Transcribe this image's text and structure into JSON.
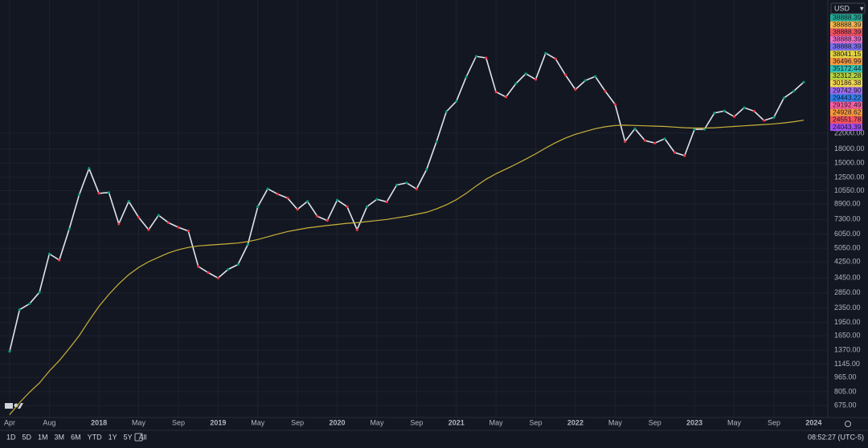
{
  "chart_data": {
    "type": "line",
    "log_scale": true,
    "grid": true,
    "currency": "USD",
    "categories": [
      "Apr",
      null,
      null,
      null,
      "Aug",
      null,
      null,
      null,
      null,
      "2018",
      null,
      null,
      null,
      "May",
      null,
      null,
      null,
      "Sep",
      null,
      null,
      null,
      "2019",
      null,
      null,
      null,
      "May",
      null,
      null,
      null,
      "Sep",
      null,
      null,
      null,
      "2020",
      null,
      null,
      null,
      "May",
      null,
      null,
      null,
      "Sep",
      null,
      null,
      null,
      "2021",
      null,
      null,
      null,
      "May",
      null,
      null,
      null,
      "Sep",
      null,
      null,
      null,
      "2022",
      null,
      null,
      null,
      "May",
      null,
      null,
      null,
      "Sep",
      null,
      null,
      null,
      "2023",
      null,
      null,
      null,
      "May",
      null,
      null,
      null,
      "Sep",
      null,
      null,
      null,
      "2024"
    ],
    "series": [
      {
        "color": "#e0e3eb",
        "values": [
          1350,
          2300,
          2480,
          2870,
          4700,
          4340,
          6450,
          10000,
          14000,
          10200,
          10300,
          6900,
          9200,
          7500,
          6400,
          7700,
          7000,
          6600,
          6300,
          4000,
          3700,
          3450,
          3850,
          4100,
          5300,
          8600,
          10800,
          10100,
          9600,
          8300,
          9200,
          7600,
          7200,
          9350,
          8600,
          6400,
          8600,
          9450,
          9140,
          11350,
          11650,
          10780,
          13800,
          19700,
          29000,
          33100,
          45200,
          58800,
          57700,
          37300,
          35000,
          41500,
          47100,
          43800,
          61300,
          57000,
          46300,
          38500,
          43200,
          45500,
          37700,
          31800,
          19800,
          23300,
          20050,
          19400,
          20500,
          17200,
          16500,
          23100,
          23150,
          28500,
          29250,
          27200,
          30500,
          29200,
          25900,
          26970,
          34500,
          37700,
          42300,
          null
        ]
      },
      {
        "color": "#c9b23a",
        "values": [
          600,
          700,
          800,
          900,
          1050,
          1200,
          1400,
          1650,
          2000,
          2400,
          2800,
          3200,
          3600,
          3950,
          4250,
          4500,
          4750,
          4950,
          5100,
          5200,
          5250,
          5300,
          5350,
          5400,
          5500,
          5650,
          5850,
          6050,
          6250,
          6400,
          6550,
          6650,
          6750,
          6850,
          6950,
          7000,
          7100,
          7200,
          7300,
          7450,
          7600,
          7800,
          8000,
          8350,
          8800,
          9400,
          10200,
          11200,
          12200,
          13100,
          13900,
          14800,
          15800,
          16900,
          18200,
          19500,
          20700,
          21700,
          22500,
          23300,
          23900,
          24300,
          24400,
          24300,
          24200,
          24100,
          24000,
          23800,
          23600,
          23500,
          23500,
          23600,
          23800,
          24000,
          24200,
          24400,
          24600,
          24800,
          25100,
          25500,
          26000,
          null
        ]
      }
    ],
    "ylim": [
      579,
      121000
    ],
    "yticks": [
      {
        "value": 675,
        "label": "675.00"
      },
      {
        "value": 805,
        "label": "805.00"
      },
      {
        "value": 965,
        "label": "965.00"
      },
      {
        "value": 1145,
        "label": "1145.00"
      },
      {
        "value": 1370,
        "label": "1370.00"
      },
      {
        "value": 1650,
        "label": "1650.00"
      },
      {
        "value": 1950,
        "label": "1950.00"
      },
      {
        "value": 2350,
        "label": "2350.00"
      },
      {
        "value": 2850,
        "label": "2850.00"
      },
      {
        "value": 3450,
        "label": "3450.00"
      },
      {
        "value": 4250,
        "label": "4250.00"
      },
      {
        "value": 5050,
        "label": "5050.00"
      },
      {
        "value": 6050,
        "label": "6050.00"
      },
      {
        "value": 7300,
        "label": "7300.00"
      },
      {
        "value": 8900,
        "label": "8900.00"
      },
      {
        "value": 10550,
        "label": "10550.00"
      },
      {
        "value": 12500,
        "label": "12500.00"
      },
      {
        "value": 15000,
        "label": "15000.00"
      },
      {
        "value": 18000,
        "label": "18000.00"
      },
      {
        "value": 22000,
        "label": "22000.00"
      }
    ],
    "price_tags": [
      {
        "label": "38888.39",
        "color": "#22ab94"
      },
      {
        "label": "38888.39",
        "color": "#f7b94e"
      },
      {
        "label": "38888.39",
        "color": "#f7525f"
      },
      {
        "label": "38888.39",
        "color": "#f06ec8"
      },
      {
        "label": "38888.39",
        "color": "#7e72f0"
      },
      {
        "label": "38041.15",
        "color": "#e2d33f"
      },
      {
        "label": "36496.99",
        "color": "#ff9b3d"
      },
      {
        "label": "35172.44",
        "color": "#2ec4b6"
      },
      {
        "label": "32312.28",
        "color": "#b5d33f"
      },
      {
        "label": "30186.38",
        "color": "#f5d94e"
      },
      {
        "label": "29742.90",
        "color": "#9c6cf0"
      },
      {
        "label": "29443.22",
        "color": "#2f80ed"
      },
      {
        "label": "29192.49",
        "color": "#ff5fa2"
      },
      {
        "label": "24928.62",
        "color": "#ff9b3d"
      },
      {
        "label": "24551.78",
        "color": "#f7525f"
      },
      {
        "label": "24043.39",
        "color": "#a44cf0"
      }
    ],
    "timeframes": [
      "1D",
      "5D",
      "1M",
      "3M",
      "6M",
      "YTD",
      "1Y",
      "5Y",
      "All"
    ],
    "clock": "08:52:27 (UTC-5)"
  }
}
